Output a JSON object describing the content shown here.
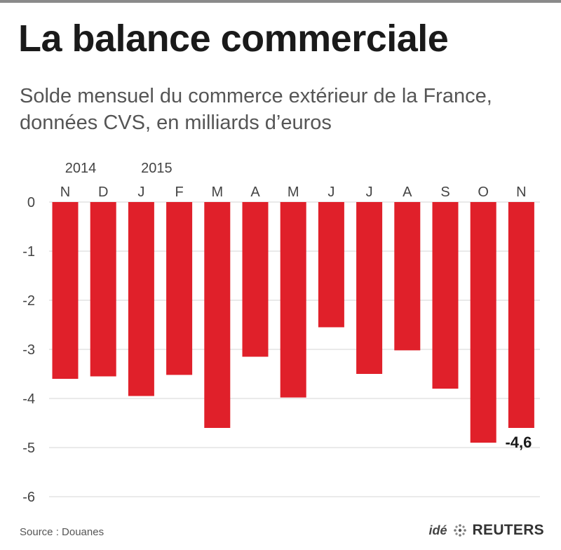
{
  "header": {
    "title": "La balance commerciale",
    "subtitle": "Solde mensuel du commerce extérieur de la France, données CVS, en milliards d’euros"
  },
  "footer": {
    "source": "Source : Douanes",
    "credit_ide": "idé",
    "credit_reuters": "REUTERS",
    "logo_icon": "reuters-dot-logo-icon"
  },
  "chart_data": {
    "type": "bar",
    "categories": [
      "N",
      "D",
      "J",
      "F",
      "M",
      "A",
      "M",
      "J",
      "J",
      "A",
      "S",
      "O",
      "N"
    ],
    "year_labels": [
      {
        "index": 0,
        "label": "2014"
      },
      {
        "index": 2,
        "label": "2015"
      }
    ],
    "values": [
      -3.6,
      -3.55,
      -3.95,
      -3.52,
      -4.6,
      -3.15,
      -3.98,
      -2.55,
      -3.5,
      -3.02,
      -3.8,
      -4.9,
      -4.6
    ],
    "annotation": {
      "index": 12,
      "text": "-4,6"
    },
    "ylim": [
      -6.3,
      0
    ],
    "yticks": [
      0,
      -1,
      -2,
      -3,
      -4,
      -5,
      -6
    ],
    "ytick_labels": [
      "0",
      "-1",
      "-2",
      "-3",
      "-4",
      "-5",
      "-6"
    ],
    "grid": true,
    "bar_color": "#e0202a",
    "grid_color": "#d4d4d4"
  }
}
